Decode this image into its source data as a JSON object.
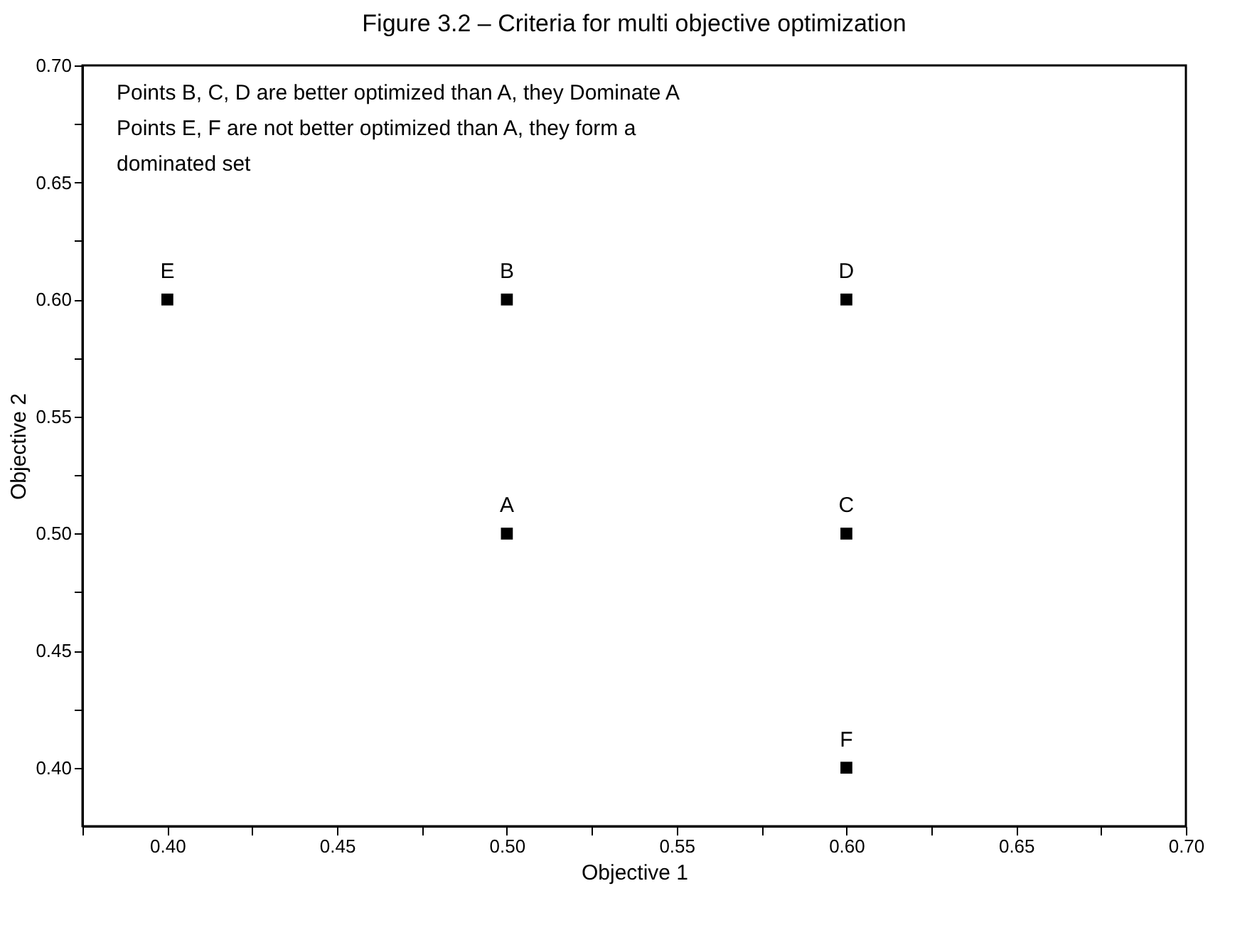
{
  "chart_data": {
    "type": "scatter",
    "title": "Figure 3.2 – Criteria for multi objective optimization",
    "xlabel": "Objective 1",
    "ylabel": "Objective 2",
    "x": [
      0.5,
      0.5,
      0.6,
      0.6,
      0.4,
      0.6
    ],
    "series": [
      {
        "color": "#000000",
        "values": [
          0.5,
          0.6,
          0.5,
          0.6,
          0.6,
          0.4
        ]
      }
    ],
    "marker": "square",
    "grid": false,
    "xlim": [
      0.375,
      0.7
    ],
    "ylim": [
      0.375,
      0.7
    ],
    "xticks": [
      {
        "value": 0.375,
        "label": null
      },
      {
        "value": 0.4,
        "label": "0.40"
      },
      {
        "value": 0.425,
        "label": null
      },
      {
        "value": 0.45,
        "label": "0.45"
      },
      {
        "value": 0.475,
        "label": null
      },
      {
        "value": 0.5,
        "label": "0.50"
      },
      {
        "value": 0.525,
        "label": null
      },
      {
        "value": 0.55,
        "label": "0.55"
      },
      {
        "value": 0.575,
        "label": null
      },
      {
        "value": 0.6,
        "label": "0.60"
      },
      {
        "value": 0.625,
        "label": null
      },
      {
        "value": 0.65,
        "label": "0.65"
      },
      {
        "value": 0.675,
        "label": null
      },
      {
        "value": 0.7,
        "label": "0.70"
      }
    ],
    "yticks": [
      {
        "value": 0.4,
        "label": "0.40"
      },
      {
        "value": 0.425,
        "label": null
      },
      {
        "value": 0.45,
        "label": "0.45"
      },
      {
        "value": 0.475,
        "label": null
      },
      {
        "value": 0.5,
        "label": "0.50"
      },
      {
        "value": 0.525,
        "label": null
      },
      {
        "value": 0.55,
        "label": "0.55"
      },
      {
        "value": 0.575,
        "label": null
      },
      {
        "value": 0.6,
        "label": "0.60"
      },
      {
        "value": 0.625,
        "label": null
      },
      {
        "value": 0.65,
        "label": "0.65"
      },
      {
        "value": 0.675,
        "label": null
      },
      {
        "value": 0.7,
        "label": "0.70"
      }
    ],
    "annotations": [
      "Points B, C, D are better optimized than A, they Dominate A",
      "Points E, F are not better optimized than A, they form a",
      "dominated set",
      {
        "text": "A",
        "x": 0.5,
        "y": 0.5
      },
      {
        "text": "B",
        "x": 0.5,
        "y": 0.6
      },
      {
        "text": "C",
        "x": 0.6,
        "y": 0.5
      },
      {
        "text": "D",
        "x": 0.6,
        "y": 0.6
      },
      {
        "text": "E",
        "x": 0.4,
        "y": 0.6
      },
      {
        "text": "F",
        "x": 0.6,
        "y": 0.4
      }
    ]
  }
}
